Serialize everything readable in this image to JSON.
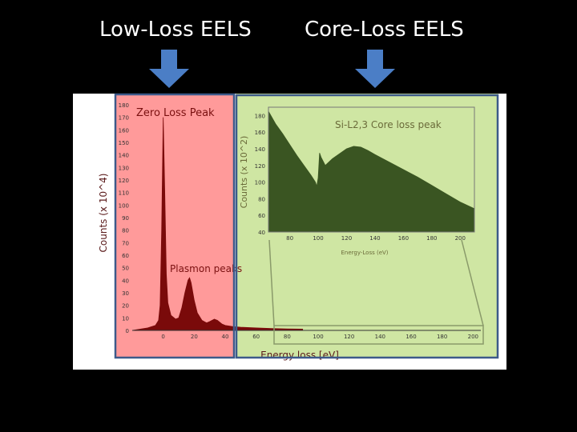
{
  "headings": {
    "low_loss": "Low-Loss EELS",
    "core_loss": "Core-Loss EELS"
  },
  "colors": {
    "low_region": "#ff9a9a",
    "core_region": "#cfe6a3",
    "frame": "#3d5a8a",
    "arrow": "#4b7ec6",
    "spectrum_main": "#7a0a0a",
    "spectrum_inset": "#3a5522",
    "label_main": "#7a1010",
    "label_inset": "#6b6b3a"
  },
  "chart_data": [
    {
      "type": "area",
      "annotations": [
        "Zero Loss Peak",
        "Plasmon peaks"
      ],
      "xlabel": "Energy loss [eV]",
      "ylabel": "Counts (x 10^4)",
      "xlim": [
        -20,
        205
      ],
      "ylim": [
        0,
        180
      ],
      "xticks": [
        0,
        20,
        40,
        60,
        80,
        100,
        120,
        140,
        160,
        180,
        200
      ],
      "yticks": [
        0,
        10,
        20,
        30,
        40,
        50,
        60,
        70,
        80,
        90,
        100,
        110,
        120,
        130,
        140,
        150,
        160,
        170,
        180
      ],
      "x": [
        -20,
        -10,
        -5,
        -3,
        -2,
        -1,
        0,
        1,
        2,
        3,
        5,
        8,
        10,
        12,
        14,
        16,
        17,
        18,
        20,
        22,
        25,
        28,
        30,
        33,
        35,
        38,
        40,
        45,
        50,
        60,
        70,
        80,
        90
      ],
      "y": [
        0,
        2,
        4,
        8,
        20,
        80,
        170,
        110,
        45,
        22,
        12,
        9,
        10,
        18,
        30,
        40,
        42,
        38,
        24,
        14,
        8,
        6,
        7,
        9,
        8,
        5,
        4,
        3,
        2.5,
        2,
        1.5,
        1.2,
        1
      ]
    },
    {
      "type": "area",
      "title": "Si-L2,3 Core loss peak",
      "xlabel": "Energy-Loss (eV)",
      "ylabel": "Counts (x 10^2)",
      "xlim": [
        65,
        210
      ],
      "ylim": [
        40,
        190
      ],
      "xticks": [
        80,
        100,
        120,
        140,
        160,
        180,
        200
      ],
      "yticks": [
        40,
        60,
        80,
        100,
        120,
        140,
        160,
        180
      ],
      "x": [
        65,
        70,
        75,
        80,
        85,
        90,
        95,
        98,
        99,
        100,
        101,
        102,
        105,
        110,
        115,
        120,
        125,
        130,
        135,
        140,
        150,
        160,
        170,
        180,
        190,
        200,
        205,
        210
      ],
      "y": [
        185,
        170,
        158,
        145,
        132,
        120,
        108,
        100,
        95,
        105,
        135,
        130,
        120,
        128,
        134,
        140,
        143,
        142,
        138,
        133,
        124,
        115,
        106,
        96,
        86,
        76,
        72,
        68
      ]
    }
  ]
}
